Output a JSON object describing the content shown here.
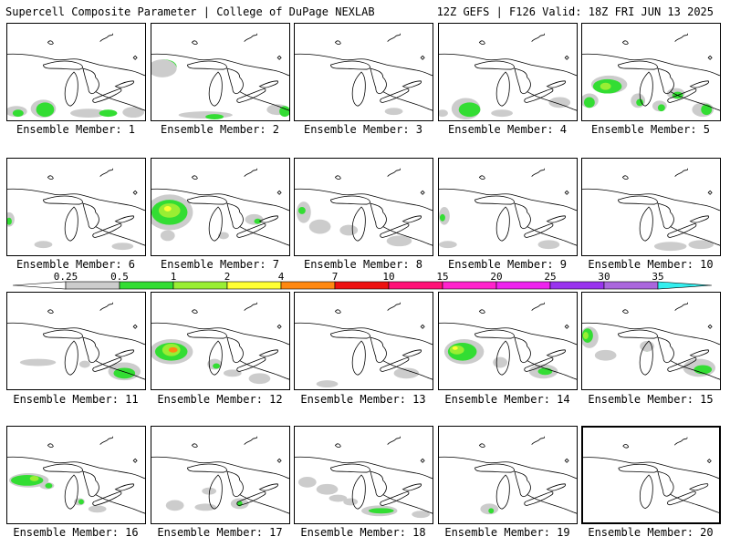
{
  "header": {
    "title": "Supercell Composite Parameter | College of DuPage NEXLAB",
    "run_info": "12Z GEFS | F126 Valid: 18Z FRI JUN 13 2025"
  },
  "colorbar": {
    "ticks": [
      "0.25",
      "0.5",
      "1",
      "2",
      "4",
      "7",
      "10",
      "15",
      "20",
      "25",
      "30",
      "35"
    ],
    "colors": [
      "#cccccc",
      "#33dd33",
      "#99ee33",
      "#ffff33",
      "#ff8811",
      "#ee1111",
      "#ff1177",
      "#ff22cc",
      "#ee22ee",
      "#9933ee",
      "#aa66dd",
      "#33eeee"
    ]
  },
  "members": [
    {
      "label": "Ensemble Member: 1"
    },
    {
      "label": "Ensemble Member: 2"
    },
    {
      "label": "Ensemble Member: 3"
    },
    {
      "label": "Ensemble Member: 4"
    },
    {
      "label": "Ensemble Member: 5"
    },
    {
      "label": "Ensemble Member: 6"
    },
    {
      "label": "Ensemble Member: 7"
    },
    {
      "label": "Ensemble Member: 8"
    },
    {
      "label": "Ensemble Member: 9"
    },
    {
      "label": "Ensemble Member: 10"
    },
    {
      "label": "Ensemble Member: 11"
    },
    {
      "label": "Ensemble Member: 12"
    },
    {
      "label": "Ensemble Member: 13"
    },
    {
      "label": "Ensemble Member: 14"
    },
    {
      "label": "Ensemble Member: 15"
    },
    {
      "label": "Ensemble Member: 16"
    },
    {
      "label": "Ensemble Member: 17"
    },
    {
      "label": "Ensemble Member: 18"
    },
    {
      "label": "Ensemble Member: 19"
    },
    {
      "label": "Ensemble Member: 20",
      "selected": true
    }
  ]
}
